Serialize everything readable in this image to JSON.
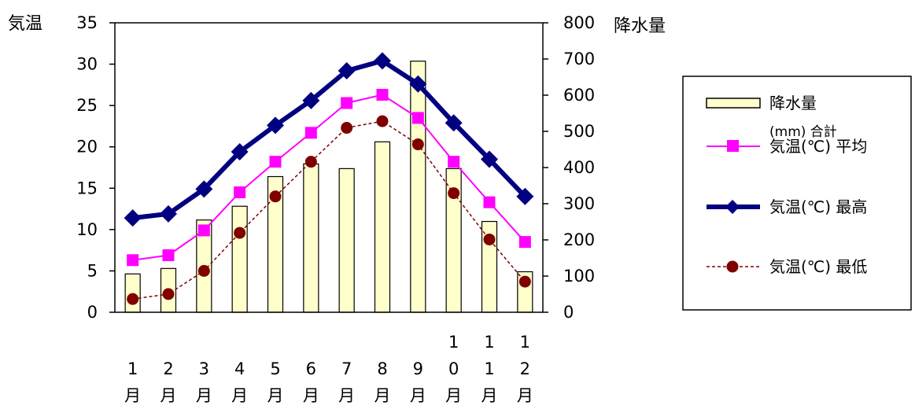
{
  "chart_data": {
    "type": "bar+line",
    "categories": [
      [
        "1",
        "月"
      ],
      [
        "2",
        "月"
      ],
      [
        "3",
        "月"
      ],
      [
        "4",
        "月"
      ],
      [
        "5",
        "月"
      ],
      [
        "6",
        "月"
      ],
      [
        "7",
        "月"
      ],
      [
        "8",
        "月"
      ],
      [
        "9",
        "月"
      ],
      [
        "1",
        "0",
        "月"
      ],
      [
        "1",
        "1",
        "月"
      ],
      [
        "1",
        "2",
        "月"
      ]
    ],
    "left_axis": {
      "title": "気温",
      "ylim": [
        0,
        35
      ],
      "ticks": [
        "0",
        "5",
        "10",
        "15",
        "20",
        "25",
        "30",
        "35"
      ]
    },
    "right_axis": {
      "title": "降水量",
      "ylim": [
        0,
        800
      ],
      "ticks": [
        "0",
        "100",
        "200",
        "300",
        "400",
        "500",
        "600",
        "700",
        "800"
      ]
    },
    "series": [
      {
        "name": "降水量",
        "name_sub": "(mm) 合計",
        "kind": "bar",
        "axis": "right",
        "color": "#FFFFCC",
        "values": [
          106,
          121,
          255,
          293,
          375,
          410,
          397,
          471,
          694,
          397,
          251,
          112
        ]
      },
      {
        "name": "気温(℃) 平均",
        "kind": "line",
        "axis": "left",
        "color": "#FF00FF",
        "marker": "square",
        "values": [
          6.3,
          6.9,
          9.9,
          14.5,
          18.2,
          21.7,
          25.3,
          26.3,
          23.5,
          18.2,
          13.3,
          8.5
        ]
      },
      {
        "name": "気温(℃) 最高",
        "kind": "line",
        "axis": "left",
        "color": "#000080",
        "marker": "diamond",
        "values": [
          11.4,
          11.9,
          14.9,
          19.4,
          22.6,
          25.6,
          29.2,
          30.4,
          27.6,
          22.9,
          18.5,
          14.0
        ]
      },
      {
        "name": "気温(℃) 最低",
        "kind": "line",
        "axis": "left",
        "color": "#800000",
        "dashed": true,
        "marker": "circle",
        "values": [
          1.6,
          2.2,
          5.0,
          9.6,
          14.0,
          18.2,
          22.3,
          23.1,
          20.3,
          14.4,
          8.8,
          3.7
        ]
      }
    ],
    "grid": false,
    "legend_position": "right"
  }
}
